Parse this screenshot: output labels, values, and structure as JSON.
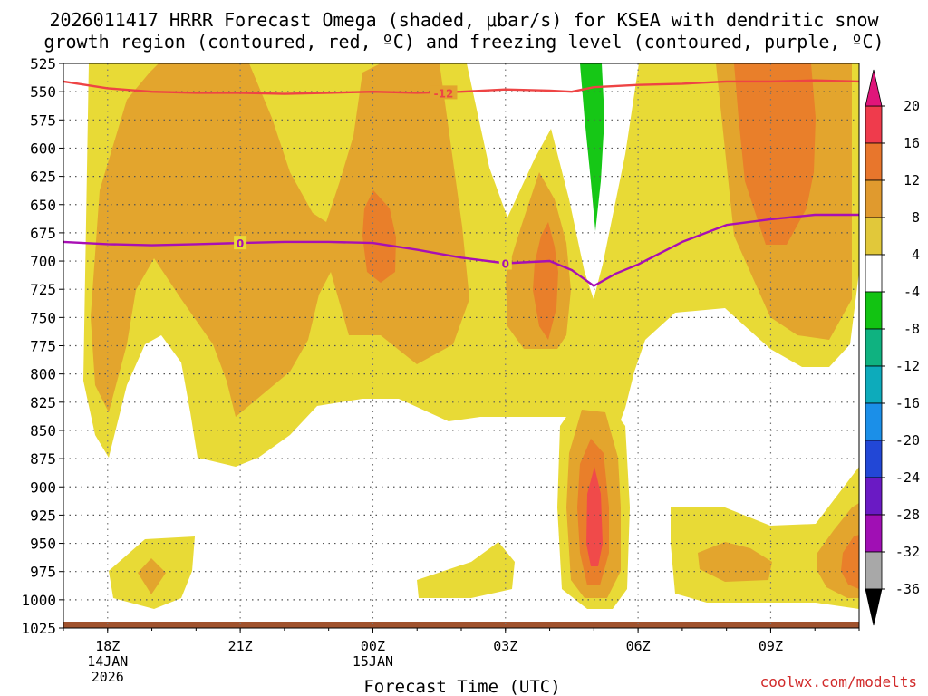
{
  "chart_data": {
    "type": "heatmap",
    "title_line1": "2026011417 HRRR Forecast Omega (shaded, μbar/s) for KSEA with dendritic snow",
    "title_line2": "growth region (contoured, red, ºC) and freezing level (contoured, purple, ºC)",
    "xlabel": "Forecast Time (UTC)",
    "credit": "coolwx.com/modelts",
    "y_ticks": [
      "525",
      "550",
      "575",
      "600",
      "625",
      "650",
      "675",
      "700",
      "725",
      "750",
      "775",
      "800",
      "825",
      "850",
      "875",
      "900",
      "925",
      "950",
      "975",
      "1000",
      "1025"
    ],
    "x_ticks": [
      {
        "label": "18Z",
        "sub1": "14JAN",
        "sub2": "2026",
        "hour": 18
      },
      {
        "label": "21Z",
        "sub1": "",
        "sub2": "",
        "hour": 21
      },
      {
        "label": "00Z",
        "sub1": "15JAN",
        "sub2": "",
        "hour": 24
      },
      {
        "label": "03Z",
        "sub1": "",
        "sub2": "",
        "hour": 27
      },
      {
        "label": "06Z",
        "sub1": "",
        "sub2": "",
        "hour": 30
      },
      {
        "label": "09Z",
        "sub1": "",
        "sub2": "",
        "hour": 33
      }
    ],
    "x_range_hours": [
      17,
      35
    ],
    "colorbar_levels": [
      "20",
      "16",
      "12",
      "8",
      "4",
      "-4",
      "-8",
      "-12",
      "-16",
      "-20",
      "-24",
      "-28",
      "-32",
      "-36"
    ],
    "colorbar_colors": [
      "#ef3b4c",
      "#e8762c",
      "#e09a2e",
      "#e1c83a",
      "#ffffff",
      "#12c312",
      "#0fb280",
      "#0dabbb",
      "#1b8fe8",
      "#2247d6",
      "#6a1ac4",
      "#a00fb4",
      "#a8a8a8"
    ],
    "shade_colors": {
      "c4_8": "#e8da36",
      "c8_12": "#e3a52d",
      "c12_16": "#e97f2a",
      "c16_20": "#f04a4a",
      "neg4_8": "#16c716"
    },
    "contours": [
      {
        "name": "dendritic-snow-growth -12C",
        "label": "-12",
        "color": "#ee4444",
        "points": [
          [
            17,
            541
          ],
          [
            18,
            547
          ],
          [
            19,
            550
          ],
          [
            20,
            551
          ],
          [
            21,
            551
          ],
          [
            22,
            552
          ],
          [
            23,
            551
          ],
          [
            24,
            550
          ],
          [
            25,
            551
          ],
          [
            26,
            550
          ],
          [
            27,
            548
          ],
          [
            28,
            549
          ],
          [
            28.5,
            550
          ],
          [
            29,
            546
          ],
          [
            30,
            544
          ],
          [
            31,
            543
          ],
          [
            32,
            541
          ],
          [
            33,
            541
          ],
          [
            34,
            540
          ],
          [
            35,
            541
          ]
        ]
      },
      {
        "name": "freezing-level 0C",
        "label": "0",
        "color": "#a80fb4",
        "points": [
          [
            17,
            683
          ],
          [
            18,
            685
          ],
          [
            19,
            686
          ],
          [
            20,
            685
          ],
          [
            21,
            684
          ],
          [
            22,
            683
          ],
          [
            23,
            683
          ],
          [
            24,
            684
          ],
          [
            25,
            690
          ],
          [
            26,
            697
          ],
          [
            27,
            702
          ],
          [
            28,
            700
          ],
          [
            28.5,
            708
          ],
          [
            29,
            722
          ],
          [
            29.5,
            711
          ],
          [
            30,
            703
          ],
          [
            31,
            683
          ],
          [
            32,
            668
          ],
          [
            33,
            663
          ],
          [
            34,
            659
          ],
          [
            35,
            659
          ]
        ]
      }
    ]
  }
}
